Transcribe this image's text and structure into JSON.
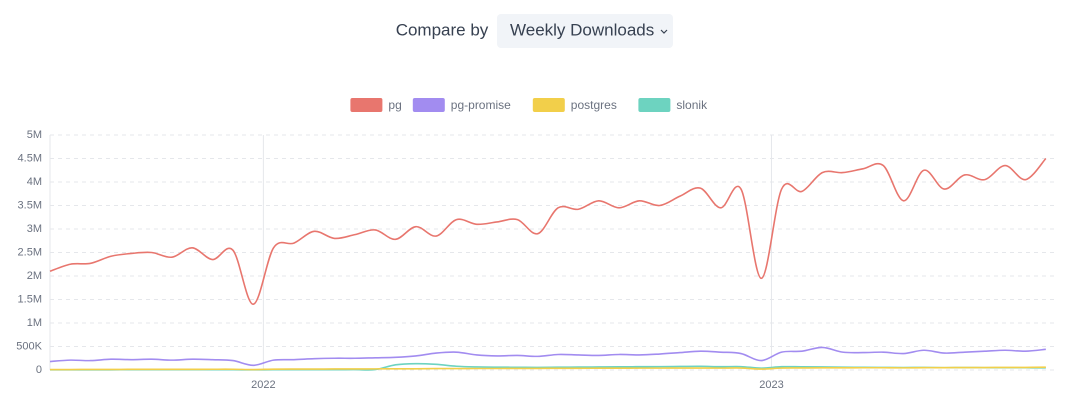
{
  "header": {
    "label": "Compare by",
    "select": "Weekly Downloads"
  },
  "chart_data": {
    "type": "line",
    "x": [
      2021.58,
      2021.62,
      2021.66,
      2021.7,
      2021.74,
      2021.78,
      2021.82,
      2021.86,
      2021.9,
      2021.94,
      2021.98,
      2022.02,
      2022.06,
      2022.1,
      2022.14,
      2022.18,
      2022.22,
      2022.26,
      2022.3,
      2022.34,
      2022.38,
      2022.42,
      2022.46,
      2022.5,
      2022.54,
      2022.58,
      2022.62,
      2022.66,
      2022.7,
      2022.74,
      2022.78,
      2022.82,
      2022.86,
      2022.9,
      2022.94,
      2022.98,
      2023.02,
      2023.06,
      2023.1,
      2023.14,
      2023.18,
      2023.22,
      2023.26,
      2023.3,
      2023.34,
      2023.38,
      2023.42,
      2023.46,
      2023.5,
      2023.54
    ],
    "series": [
      {
        "name": "pg",
        "color": "#e8766e",
        "values": [
          2100000,
          2250000,
          2270000,
          2420000,
          2480000,
          2500000,
          2400000,
          2600000,
          2350000,
          2550000,
          1400000,
          2600000,
          2700000,
          2950000,
          2800000,
          2880000,
          2980000,
          2780000,
          3050000,
          2850000,
          3200000,
          3100000,
          3150000,
          3200000,
          2900000,
          3450000,
          3420000,
          3600000,
          3450000,
          3600000,
          3500000,
          3700000,
          3870000,
          3450000,
          3850000,
          1950000,
          3850000,
          3800000,
          4200000,
          4200000,
          4280000,
          4350000,
          3600000,
          4250000,
          3850000,
          4150000,
          4050000,
          4350000,
          4050000,
          4500000
        ]
      },
      {
        "name": "pg-promise",
        "color": "#a28cf0",
        "values": [
          180000,
          210000,
          200000,
          230000,
          220000,
          230000,
          210000,
          230000,
          220000,
          200000,
          100000,
          210000,
          220000,
          240000,
          250000,
          250000,
          260000,
          270000,
          300000,
          360000,
          380000,
          320000,
          300000,
          310000,
          290000,
          330000,
          320000,
          310000,
          330000,
          320000,
          340000,
          370000,
          400000,
          380000,
          350000,
          200000,
          380000,
          400000,
          480000,
          380000,
          370000,
          380000,
          350000,
          420000,
          360000,
          380000,
          400000,
          420000,
          400000,
          440000
        ]
      },
      {
        "name": "postgres",
        "color": "#f2cf4a",
        "values": [
          10000,
          10000,
          12000,
          12000,
          14000,
          14000,
          15000,
          15000,
          16000,
          16000,
          10000,
          18000,
          20000,
          20000,
          22000,
          22000,
          24000,
          25000,
          26000,
          30000,
          30000,
          32000,
          32000,
          34000,
          34000,
          36000,
          36000,
          38000,
          38000,
          40000,
          40000,
          42000,
          42000,
          40000,
          42000,
          20000,
          42000,
          44000,
          46000,
          46000,
          48000,
          48000,
          45000,
          50000,
          50000,
          52000,
          52000,
          55000,
          55000,
          60000
        ]
      },
      {
        "name": "slonik",
        "color": "#6dd3c0",
        "values": [
          5000,
          5000,
          5000,
          5000,
          6000,
          6000,
          6000,
          6000,
          6000,
          6000,
          4000,
          6000,
          6000,
          7000,
          7000,
          8000,
          8000,
          110000,
          135000,
          120000,
          80000,
          65000,
          60000,
          58000,
          55000,
          60000,
          62000,
          65000,
          68000,
          70000,
          72000,
          75000,
          78000,
          70000,
          72000,
          40000,
          70000,
          68000,
          65000,
          60000,
          58000,
          55000,
          52000,
          55000,
          50000,
          52000,
          50000,
          50000,
          48000,
          45000
        ]
      }
    ],
    "xlim": [
      2021.58,
      2023.56
    ],
    "xticks": [
      2022,
      2023
    ],
    "ylim": [
      0,
      5000000
    ],
    "yticks": [
      0,
      {
        "value": 500000,
        "label": "500K"
      },
      {
        "value": 1000000,
        "label": "1M"
      },
      {
        "value": 1500000,
        "label": "1.5M"
      },
      {
        "value": 2000000,
        "label": "2M"
      },
      {
        "value": 2500000,
        "label": "2.5M"
      },
      {
        "value": 3000000,
        "label": "3M"
      },
      {
        "value": 3500000,
        "label": "3.5M"
      },
      {
        "value": 4000000,
        "label": "4M"
      },
      {
        "value": 4500000,
        "label": "4.5M"
      },
      {
        "value": 5000000,
        "label": "5M"
      }
    ],
    "grid": true
  }
}
